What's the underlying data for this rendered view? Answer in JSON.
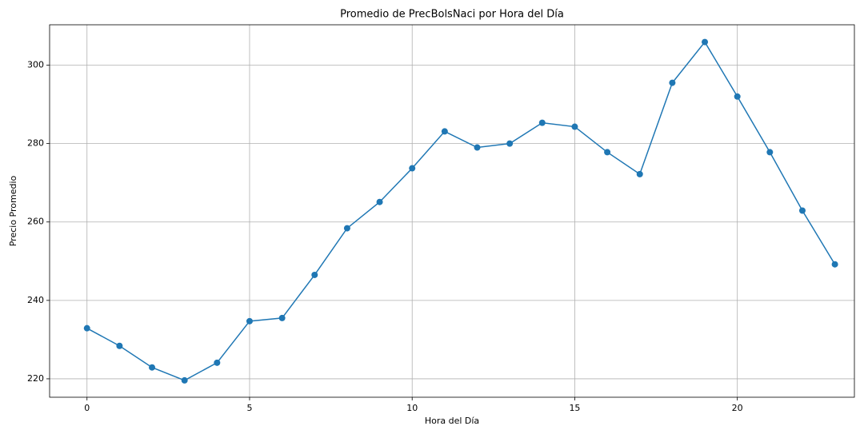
{
  "chart_data": {
    "type": "line",
    "title": "Promedio de PrecBolsNaci por Hora del Día",
    "x_label": "Hora del Día",
    "y_label": "Precio Promedio",
    "x": [
      0,
      1,
      2,
      3,
      4,
      5,
      6,
      7,
      8,
      9,
      10,
      11,
      12,
      13,
      14,
      15,
      16,
      17,
      18,
      19,
      20,
      21,
      22,
      23
    ],
    "series": [
      {
        "name": "PrecBolsNaci",
        "color": "#1f77b4",
        "values": [
          232.9,
          228.4,
          222.9,
          219.6,
          224.1,
          234.7,
          235.5,
          246.5,
          258.4,
          265.1,
          273.7,
          283.1,
          279.0,
          280.0,
          285.3,
          284.3,
          277.8,
          272.2,
          295.5,
          305.9,
          292.0,
          277.8,
          262.9,
          249.2
        ]
      }
    ],
    "xlim": [
      -1.15,
      23.6
    ],
    "xticks": [
      0,
      5,
      10,
      15,
      20
    ],
    "ylim": [
      215.3,
      310.3
    ],
    "yticks": [
      220,
      240,
      260,
      280,
      300
    ],
    "grid": true
  }
}
